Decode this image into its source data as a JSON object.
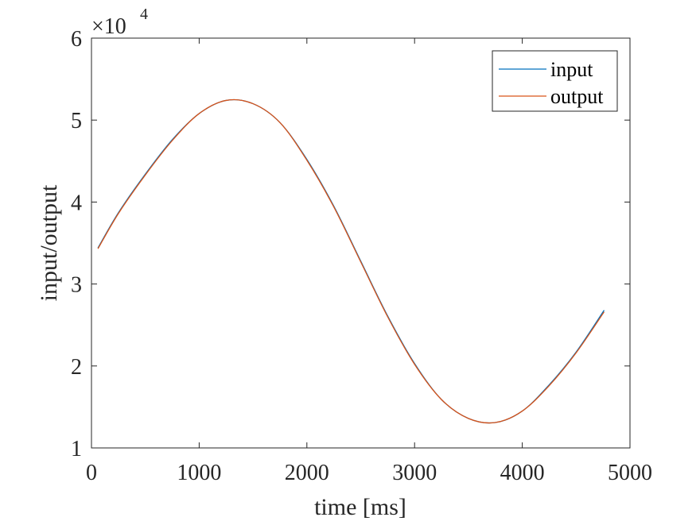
{
  "chart_data": {
    "type": "line",
    "xlabel": "time [ms]",
    "ylabel": "input/output",
    "xlim": [
      0,
      5000
    ],
    "ylim": [
      10000,
      60000
    ],
    "xticks": [
      0,
      1000,
      2000,
      3000,
      4000,
      5000
    ],
    "xtick_labels": [
      "0",
      "1000",
      "2000",
      "3000",
      "4000",
      "5000"
    ],
    "yticks": [
      10000,
      20000,
      30000,
      40000,
      50000,
      60000
    ],
    "ytick_labels": [
      "1",
      "2",
      "3",
      "4",
      "5",
      "6"
    ],
    "y_multiplier": {
      "base": "×10",
      "exponent": "4"
    },
    "grid": false,
    "legend_position": "top-right",
    "series": [
      {
        "name": "input",
        "color": "#0072BD",
        "x": [
          60,
          250,
          500,
          750,
          1000,
          1250,
          1500,
          1750,
          2000,
          2250,
          2500,
          2750,
          3000,
          3250,
          3500,
          3750,
          4000,
          4250,
          4500,
          4760
        ],
        "y": [
          34400,
          38700,
          43400,
          47600,
          50800,
          52400,
          52000,
          49700,
          45200,
          39500,
          32800,
          26100,
          20300,
          15900,
          13600,
          13100,
          14500,
          17700,
          21700,
          26800
        ]
      },
      {
        "name": "output",
        "color": "#D95319",
        "x": [
          60,
          250,
          500,
          750,
          1000,
          1250,
          1500,
          1750,
          2000,
          2250,
          2500,
          2750,
          3000,
          3250,
          3500,
          3750,
          4000,
          4250,
          4500,
          4760
        ],
        "y": [
          34300,
          38600,
          43300,
          47500,
          50800,
          52400,
          52000,
          49700,
          45100,
          39400,
          32700,
          26000,
          20200,
          15900,
          13600,
          13100,
          14500,
          17600,
          21600,
          26600
        ]
      }
    ]
  }
}
